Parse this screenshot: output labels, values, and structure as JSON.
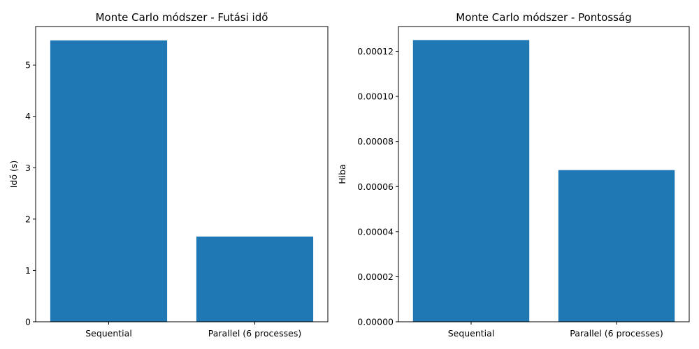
{
  "chart_data": [
    {
      "type": "bar",
      "title": "Monte Carlo módszer - Futási idő",
      "xlabel": "",
      "ylabel": "Idő (s)",
      "categories": [
        "Sequential",
        "Parallel (6 processes)"
      ],
      "values": [
        5.48,
        1.66
      ],
      "ylim": [
        0,
        5.75
      ],
      "yticks": [
        0,
        1,
        2,
        3,
        4,
        5
      ],
      "ytick_labels": [
        "0",
        "1",
        "2",
        "3",
        "4",
        "5"
      ],
      "color": "#1f77b4",
      "grid": false
    },
    {
      "type": "bar",
      "title": "Monte Carlo módszer - Pontosság",
      "xlabel": "",
      "ylabel": "Hiba",
      "categories": [
        "Sequential",
        "Parallel (6 processes)"
      ],
      "values": [
        0.000125,
        6.73e-05
      ],
      "ylim": [
        0,
        0.000131
      ],
      "yticks": [
        0,
        2e-05,
        4e-05,
        6e-05,
        8e-05,
        0.0001,
        0.00012
      ],
      "ytick_labels": [
        "0.00000",
        "0.00002",
        "0.00004",
        "0.00006",
        "0.00008",
        "0.00010",
        "0.00012"
      ],
      "color": "#1f77b4",
      "grid": false
    }
  ]
}
